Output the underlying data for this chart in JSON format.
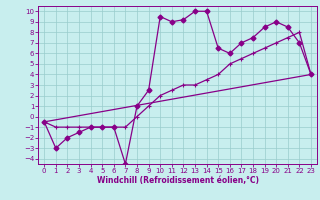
{
  "xlabel": "Windchill (Refroidissement éolien,°C)",
  "xlim": [
    -0.5,
    23.5
  ],
  "ylim": [
    -4.5,
    10.5
  ],
  "xticks": [
    0,
    1,
    2,
    3,
    4,
    5,
    6,
    7,
    8,
    9,
    10,
    11,
    12,
    13,
    14,
    15,
    16,
    17,
    18,
    19,
    20,
    21,
    22,
    23
  ],
  "yticks": [
    -4,
    -3,
    -2,
    -1,
    0,
    1,
    2,
    3,
    4,
    5,
    6,
    7,
    8,
    9,
    10
  ],
  "bg_color": "#c8eeee",
  "line_color": "#880088",
  "grid_color": "#99cccc",
  "line1_x": [
    0,
    1,
    2,
    3,
    4,
    5,
    6,
    7,
    8,
    9,
    10,
    11,
    12,
    13,
    14,
    15,
    16,
    17,
    18,
    19,
    20,
    21,
    22,
    23
  ],
  "line1_y": [
    -0.5,
    -3,
    -2,
    -1.5,
    -1,
    -1,
    -1,
    -4.5,
    1,
    2.5,
    9.5,
    9,
    9.2,
    10,
    10,
    6.5,
    6,
    7,
    7.5,
    8.5,
    9,
    8.5,
    7,
    4
  ],
  "line2_x": [
    0,
    1,
    2,
    3,
    4,
    5,
    6,
    7,
    8,
    9,
    10,
    11,
    12,
    13,
    14,
    15,
    16,
    17,
    18,
    19,
    20,
    21,
    22,
    23
  ],
  "line2_y": [
    -0.5,
    -1,
    -1,
    -1,
    -1,
    -1,
    -1,
    -1,
    0,
    1,
    2,
    2.5,
    3,
    3,
    3.5,
    4,
    5,
    5.5,
    6,
    6.5,
    7,
    7.5,
    8,
    4
  ],
  "line3_x": [
    0,
    23
  ],
  "line3_y": [
    -0.5,
    4
  ],
  "marker_size": 2.5,
  "line_width": 0.9,
  "tick_fontsize": 5,
  "xlabel_fontsize": 5.5
}
